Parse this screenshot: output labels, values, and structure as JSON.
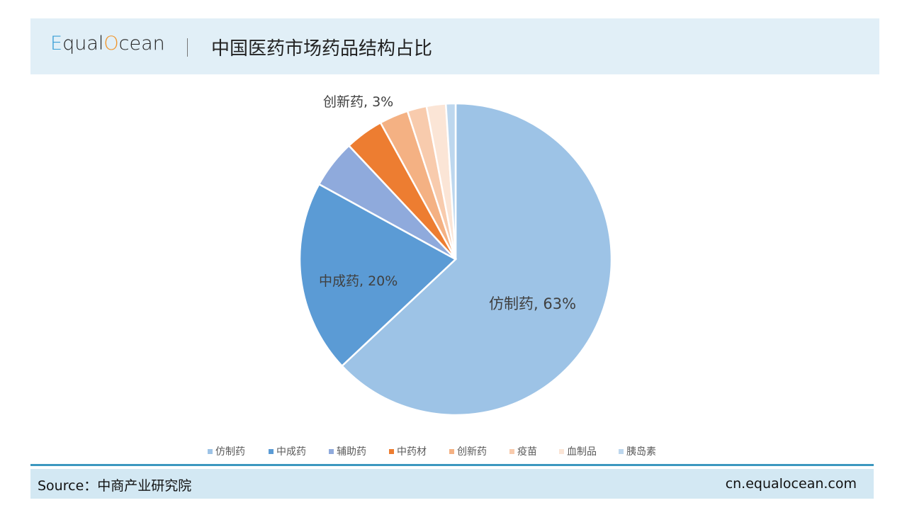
{
  "header": {
    "logo_e": "E",
    "logo_mid": "qual",
    "logo_o": "O",
    "logo_end": "cean",
    "title": "中国医药市场药品结构占比"
  },
  "footer": {
    "source": "Source：中商产业研究院",
    "site": "cn.equalocean.com"
  },
  "chart_data": {
    "type": "pie",
    "title": "中国医药市场药品结构占比",
    "categories": [
      "仿制药",
      "中成药",
      "辅助药",
      "中药材",
      "创新药",
      "疫苗",
      "血制品",
      "胰岛素"
    ],
    "values": [
      63,
      20,
      5,
      4,
      3,
      2,
      2,
      1
    ],
    "unit": "%",
    "colors": [
      "#9dc3e6",
      "#5b9bd5",
      "#8faadc",
      "#ed7d31",
      "#f4b183",
      "#f8cbad",
      "#fbe5d6",
      "#bdd7ee"
    ],
    "data_labels": [
      {
        "category": "仿制药",
        "text": "仿制药, 63%"
      },
      {
        "category": "中成药",
        "text": "中成药, 20%"
      },
      {
        "category": "创新药",
        "text": "创新药, 3%"
      }
    ],
    "start_angle": "12 o'clock, clockwise",
    "legend_position": "bottom"
  },
  "labels": {
    "generic": "仿制药, 63%",
    "tcm": "中成药, 20%",
    "innovative": "创新药, 3%"
  }
}
